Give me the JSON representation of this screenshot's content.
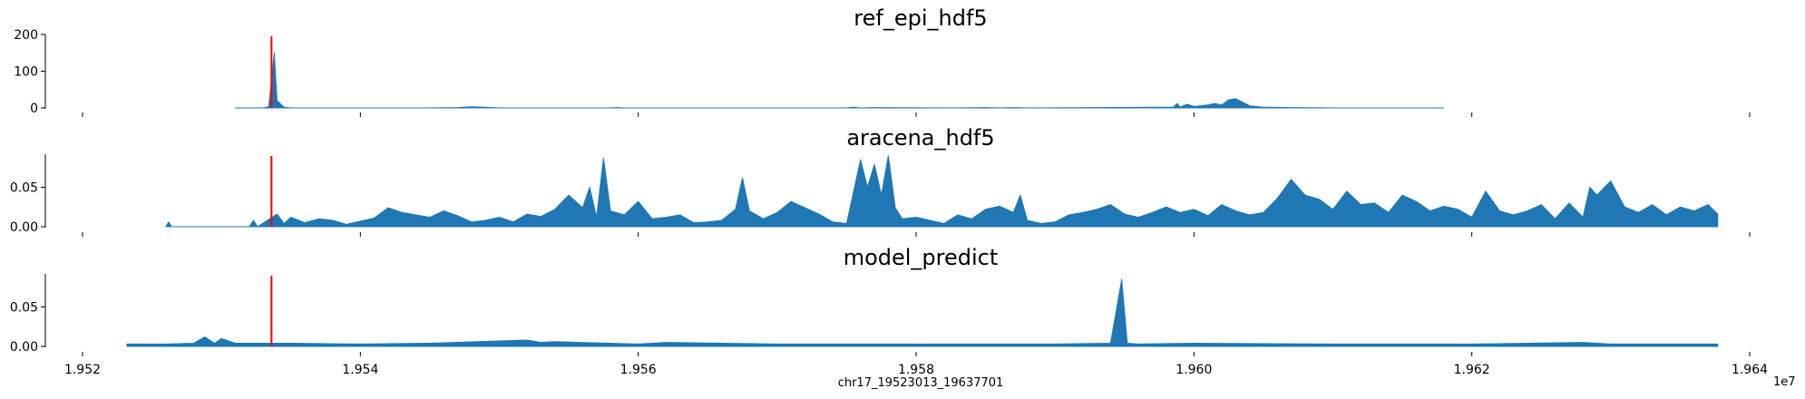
{
  "figure": {
    "xlabel": "chr17_19523013_19637701",
    "x_offset_text": "1e7"
  },
  "chart_data": [
    {
      "type": "area",
      "title": "ref_epi_hdf5",
      "xlim": [
        1.9518,
        1.9642
      ],
      "ylim": [
        0,
        200
      ],
      "y_ticks": [
        0,
        100,
        200
      ],
      "y_tick_labels": [
        "0",
        "100",
        "200"
      ],
      "show_x_tick_labels": false,
      "marker_x": 1.95336,
      "series": [
        {
          "color": "#1f77b4",
          "x": [
            1.9531,
            1.9533,
            1.95334,
            1.95336,
            1.95338,
            1.9534,
            1.95345,
            1.9535,
            1.9545,
            1.9547,
            1.9548,
            1.9549,
            1.955,
            1.9558,
            1.95585,
            1.9559,
            1.9565,
            1.9575,
            1.95755,
            1.9576,
            1.9577,
            1.9583,
            1.9585,
            1.9586,
            1.9587,
            1.9588,
            1.95985,
            1.95988,
            1.9599,
            1.95995,
            1.96,
            1.96005,
            1.9601,
            1.96015,
            1.9602,
            1.96025,
            1.9603,
            1.9604,
            1.9605,
            1.9607,
            1.961,
            1.9618
          ],
          "values": [
            0,
            0,
            3,
            75,
            150,
            20,
            2,
            0,
            0,
            1,
            3,
            2,
            0,
            0,
            1,
            0,
            0,
            0,
            2,
            0,
            1,
            0,
            1,
            0,
            1,
            0,
            2,
            12,
            2,
            10,
            4,
            6,
            8,
            12,
            8,
            22,
            25,
            6,
            2,
            1,
            0,
            0
          ]
        }
      ]
    },
    {
      "type": "area",
      "title": "aracena_hdf5",
      "xlim": [
        1.9518,
        1.9642
      ],
      "ylim": [
        0,
        0.092
      ],
      "y_ticks": [
        0,
        0.05
      ],
      "y_tick_labels": [
        "0.00",
        "0.05"
      ],
      "show_x_tick_labels": false,
      "marker_x": 1.95336,
      "series": [
        {
          "color": "#1f77b4",
          "x": [
            1.9526,
            1.95262,
            1.95264,
            1.9532,
            1.95323,
            1.95326,
            1.9534,
            1.95345,
            1.9535,
            1.9536,
            1.9537,
            1.9538,
            1.9539,
            1.9541,
            1.9542,
            1.9543,
            1.9545,
            1.9546,
            1.9547,
            1.9548,
            1.9549,
            1.955,
            1.9551,
            1.9552,
            1.9553,
            1.9554,
            1.9555,
            1.9556,
            1.95565,
            1.9557,
            1.95575,
            1.9558,
            1.9559,
            1.956,
            1.9561,
            1.9562,
            1.9563,
            1.9564,
            1.9565,
            1.9566,
            1.9567,
            1.95675,
            1.9568,
            1.9569,
            1.957,
            1.9571,
            1.9572,
            1.9573,
            1.9574,
            1.9575,
            1.9576,
            1.95765,
            1.9577,
            1.95775,
            1.9578,
            1.95785,
            1.9579,
            1.958,
            1.9581,
            1.9582,
            1.9583,
            1.9584,
            1.9585,
            1.9586,
            1.9587,
            1.95875,
            1.9588,
            1.9589,
            1.959,
            1.9591,
            1.9592,
            1.9593,
            1.9594,
            1.9595,
            1.9596,
            1.9597,
            1.9598,
            1.9599,
            1.96,
            1.9601,
            1.9602,
            1.9603,
            1.9604,
            1.9605,
            1.9606,
            1.9607,
            1.9608,
            1.9609,
            1.961,
            1.9611,
            1.9612,
            1.9613,
            1.9614,
            1.9615,
            1.9616,
            1.9617,
            1.9618,
            1.9619,
            1.962,
            1.9621,
            1.9622,
            1.9623,
            1.9624,
            1.9625,
            1.9626,
            1.9627,
            1.9628,
            1.96285,
            1.9629,
            1.963,
            1.9631,
            1.9632,
            1.9633,
            1.9634,
            1.9635,
            1.9636,
            1.9637,
            1.96377
          ],
          "values": [
            0,
            0.006,
            0,
            0,
            0.008,
            0,
            0.016,
            0.004,
            0.012,
            0.005,
            0.01,
            0.008,
            0.003,
            0.011,
            0.024,
            0.018,
            0.012,
            0.02,
            0.014,
            0.006,
            0.008,
            0.012,
            0.006,
            0.016,
            0.013,
            0.022,
            0.04,
            0.024,
            0.05,
            0.012,
            0.087,
            0.02,
            0.015,
            0.032,
            0.01,
            0.012,
            0.015,
            0.005,
            0.006,
            0.008,
            0.022,
            0.062,
            0.02,
            0.01,
            0.018,
            0.032,
            0.024,
            0.016,
            0.006,
            0.004,
            0.085,
            0.05,
            0.079,
            0.04,
            0.09,
            0.024,
            0.01,
            0.012,
            0.008,
            0.004,
            0.015,
            0.01,
            0.022,
            0.026,
            0.018,
            0.04,
            0.008,
            0.004,
            0.006,
            0.015,
            0.018,
            0.022,
            0.028,
            0.016,
            0.012,
            0.018,
            0.025,
            0.018,
            0.022,
            0.014,
            0.028,
            0.02,
            0.015,
            0.018,
            0.036,
            0.06,
            0.04,
            0.035,
            0.022,
            0.045,
            0.028,
            0.03,
            0.018,
            0.04,
            0.032,
            0.02,
            0.026,
            0.022,
            0.012,
            0.045,
            0.02,
            0.015,
            0.02,
            0.028,
            0.01,
            0.03,
            0.012,
            0.05,
            0.04,
            0.058,
            0.025,
            0.018,
            0.028,
            0.015,
            0.025,
            0.02,
            0.028,
            0.016
          ]
        }
      ]
    },
    {
      "type": "area",
      "title": "model_predict",
      "xlim": [
        1.9518,
        1.9642
      ],
      "ylim": [
        0,
        0.092
      ],
      "y_ticks": [
        0,
        0.05
      ],
      "y_tick_labels": [
        "0.00",
        "0.05"
      ],
      "x_ticks": [
        1.952,
        1.954,
        1.956,
        1.958,
        1.96,
        1.962,
        1.964
      ],
      "x_tick_labels": [
        "1.952",
        "1.954",
        "1.956",
        "1.958",
        "1.960",
        "1.962",
        "1.964"
      ],
      "show_x_tick_labels": true,
      "marker_x": 1.95336,
      "series": [
        {
          "color": "#1f77b4",
          "x": [
            1.95232,
            1.9526,
            1.9528,
            1.95288,
            1.95295,
            1.953,
            1.9531,
            1.9535,
            1.954,
            1.9545,
            1.9552,
            1.9553,
            1.9554,
            1.956,
            1.9562,
            1.957,
            1.958,
            1.959,
            1.9594,
            1.95948,
            1.95952,
            1.9596,
            1.96,
            1.961,
            1.962,
            1.9628,
            1.963,
            1.9635,
            1.96377
          ],
          "values": [
            0.003,
            0.003,
            0.004,
            0.012,
            0.004,
            0.01,
            0.004,
            0.004,
            0.003,
            0.004,
            0.008,
            0.005,
            0.006,
            0.003,
            0.005,
            0.003,
            0.003,
            0.003,
            0.004,
            0.085,
            0.004,
            0.003,
            0.004,
            0.003,
            0.003,
            0.005,
            0.003,
            0.003,
            0.003
          ]
        }
      ]
    }
  ]
}
